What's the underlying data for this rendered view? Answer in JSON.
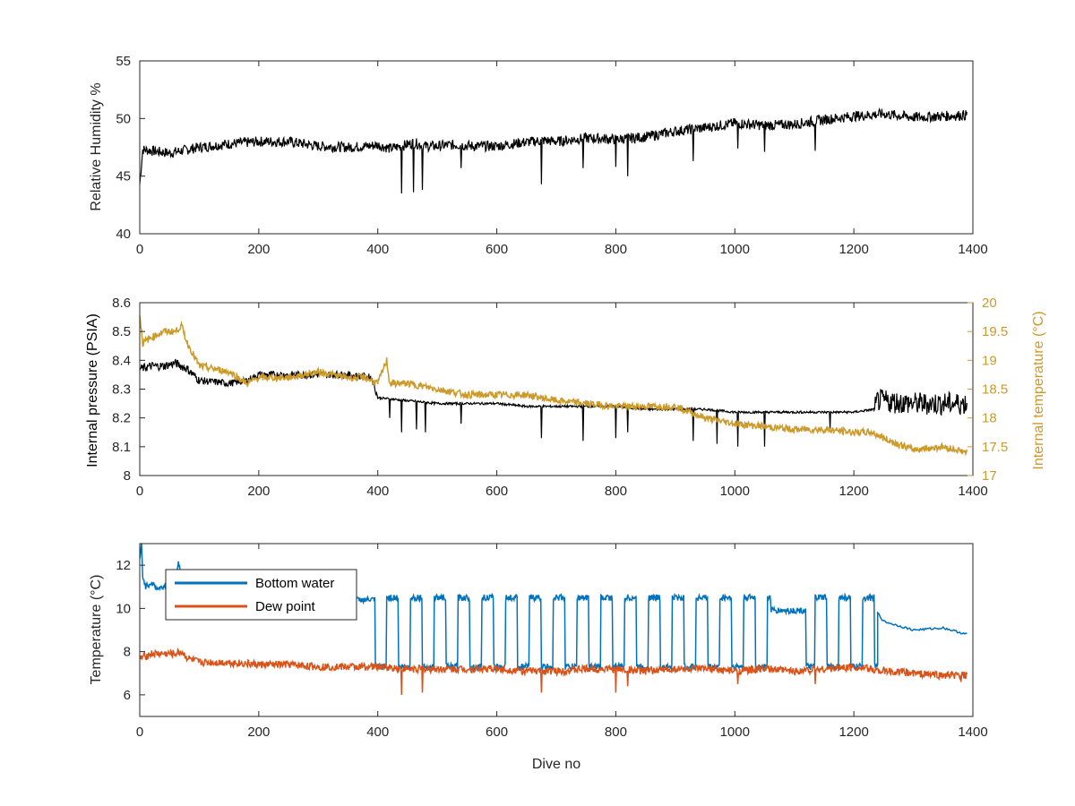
{
  "chart_data": [
    {
      "type": "line",
      "panel": "humidity",
      "xlabel": "",
      "ylabel": "Relative Humidity %",
      "xlim": [
        0,
        1400
      ],
      "ylim": [
        40,
        55
      ],
      "xticks": [
        0,
        200,
        400,
        600,
        800,
        1000,
        1200,
        1400
      ],
      "yticks": [
        40,
        45,
        50,
        55
      ],
      "grid": false,
      "series": [
        {
          "color": "#000000",
          "x": [
            0,
            5,
            20,
            50,
            100,
            150,
            200,
            250,
            300,
            350,
            380,
            400,
            420,
            440,
            460,
            480,
            500,
            520,
            540,
            560,
            600,
            640,
            680,
            700,
            750,
            800,
            850,
            900,
            950,
            1000,
            1050,
            1100,
            1150,
            1200,
            1250,
            1300,
            1350,
            1390
          ],
          "values": [
            44.3,
            47.3,
            47.2,
            47.0,
            47.5,
            47.8,
            48.0,
            48.0,
            47.6,
            47.5,
            47.6,
            47.7,
            47.4,
            47.6,
            47.9,
            47.6,
            47.6,
            47.7,
            47.7,
            47.6,
            47.6,
            47.9,
            48.1,
            48.0,
            48.3,
            48.2,
            48.4,
            48.9,
            49.2,
            49.6,
            49.4,
            49.5,
            49.9,
            50.2,
            50.4,
            50.1,
            50.2,
            50.3
          ]
        }
      ],
      "dips": [
        [
          440,
          43.5
        ],
        [
          460,
          43.6
        ],
        [
          475,
          43.8
        ],
        [
          540,
          45.7
        ],
        [
          675,
          44.3
        ],
        [
          745,
          45.7
        ],
        [
          800,
          45.8
        ],
        [
          820,
          45.0
        ],
        [
          930,
          46.3
        ],
        [
          1005,
          47.4
        ],
        [
          1050,
          47.1
        ],
        [
          1135,
          47.2
        ]
      ]
    },
    {
      "type": "line",
      "panel": "pressure",
      "xlabel": "",
      "ylabel": "Internal pressure (PSIA)",
      "ylabel_right": "Internal temperature (°C)",
      "xlim": [
        0,
        1400
      ],
      "ylim": [
        8.0,
        8.6
      ],
      "ylim_right": [
        17,
        20
      ],
      "xticks": [
        0,
        200,
        400,
        600,
        800,
        1000,
        1200,
        1400
      ],
      "yticks": [
        "8",
        "8.1",
        "8.2",
        "8.3",
        "8.4",
        "8.5",
        "8.6"
      ],
      "yticks_right": [
        "17",
        "17.5",
        "18",
        "18.5",
        "19",
        "19.5",
        "20"
      ],
      "grid": false,
      "series": [
        {
          "axis": "left",
          "color": "#000000",
          "x": [
            0,
            20,
            40,
            60,
            80,
            100,
            150,
            180,
            200,
            250,
            300,
            350,
            390,
            400,
            450,
            500,
            550,
            600,
            650,
            700,
            750,
            800,
            850,
            900,
            950,
            1000,
            1050,
            1100,
            1150,
            1200,
            1235,
            1240,
            1300,
            1390
          ],
          "values": [
            8.37,
            8.38,
            8.38,
            8.39,
            8.37,
            8.33,
            8.32,
            8.33,
            8.35,
            8.35,
            8.35,
            8.35,
            8.34,
            8.27,
            8.26,
            8.25,
            8.25,
            8.25,
            8.24,
            8.24,
            8.24,
            8.24,
            8.23,
            8.23,
            8.23,
            8.22,
            8.22,
            8.22,
            8.22,
            8.22,
            8.23,
            8.26,
            8.25,
            8.25
          ]
        },
        {
          "axis": "right",
          "color": "#cc9a2a",
          "x": [
            0,
            5,
            20,
            40,
            60,
            70,
            80,
            100,
            150,
            180,
            200,
            250,
            300,
            350,
            380,
            400,
            415,
            420,
            450,
            500,
            550,
            600,
            650,
            700,
            750,
            800,
            850,
            900,
            950,
            1000,
            1050,
            1100,
            1150,
            1200,
            1230,
            1260,
            1300,
            1350,
            1390
          ],
          "values": [
            19.8,
            19.3,
            19.4,
            19.5,
            19.5,
            19.6,
            19.3,
            18.9,
            18.8,
            18.6,
            18.7,
            18.7,
            18.8,
            18.7,
            18.7,
            18.6,
            19.0,
            18.6,
            18.6,
            18.5,
            18.4,
            18.4,
            18.4,
            18.3,
            18.25,
            18.2,
            18.2,
            18.2,
            18.0,
            17.9,
            17.85,
            17.8,
            17.8,
            17.75,
            17.75,
            17.6,
            17.45,
            17.5,
            17.4
          ]
        }
      ],
      "dips": [
        [
          420,
          8.2
        ],
        [
          440,
          8.15
        ],
        [
          465,
          8.16
        ],
        [
          480,
          8.15
        ],
        [
          540,
          8.18
        ],
        [
          675,
          8.13
        ],
        [
          745,
          8.12
        ],
        [
          800,
          8.13
        ],
        [
          820,
          8.15
        ],
        [
          930,
          8.12
        ],
        [
          970,
          8.11
        ],
        [
          1005,
          8.1
        ],
        [
          1050,
          8.1
        ],
        [
          1160,
          8.16
        ]
      ]
    },
    {
      "type": "line",
      "panel": "temperature",
      "xlabel": "Dive no",
      "ylabel": "Temperature (°C)",
      "xlim": [
        0,
        1400
      ],
      "ylim": [
        5,
        13
      ],
      "xticks": [
        0,
        200,
        400,
        600,
        800,
        1000,
        1200,
        1400
      ],
      "yticks": [
        6,
        8,
        10,
        12
      ],
      "grid": false,
      "legend_position": "top-left",
      "series": [
        {
          "name": "Bottom water",
          "color": "#0072bd",
          "x": [
            0,
            3,
            5,
            10,
            20,
            30,
            40,
            50,
            60,
            65,
            70,
            80,
            100,
            150,
            200,
            250,
            300,
            350,
            380,
            395
          ],
          "values": [
            12.2,
            13.0,
            11.5,
            11.0,
            11.2,
            10.9,
            11.0,
            11.4,
            11.0,
            12.2,
            11.5,
            10.9,
            10.8,
            10.7,
            10.6,
            10.6,
            10.5,
            10.4,
            10.4,
            10.4
          ]
        },
        {
          "name": "Dew point",
          "color": "#d95319",
          "x": [
            0,
            20,
            40,
            60,
            70,
            80,
            100,
            150,
            200,
            250,
            300,
            350,
            400,
            450,
            500,
            550,
            600,
            650,
            700,
            750,
            800,
            850,
            900,
            950,
            1000,
            1050,
            1100,
            1150,
            1200,
            1250,
            1300,
            1350,
            1390
          ],
          "values": [
            7.7,
            7.9,
            7.9,
            7.9,
            8.0,
            7.7,
            7.5,
            7.5,
            7.4,
            7.4,
            7.3,
            7.3,
            7.3,
            7.2,
            7.2,
            7.2,
            7.2,
            7.1,
            7.1,
            7.2,
            7.2,
            7.1,
            7.2,
            7.2,
            7.1,
            7.2,
            7.1,
            7.2,
            7.3,
            7.1,
            7.0,
            6.9,
            6.9
          ]
        }
      ],
      "cycling_region": {
        "x_start": 395,
        "x_end": 1240,
        "high": 10.5,
        "low": 7.3
      },
      "tail": {
        "x": [
          1240,
          1250,
          1300,
          1350,
          1390
        ],
        "values": [
          9.8,
          9.4,
          9.0,
          9.1,
          8.8
        ]
      },
      "dips": [
        [
          440,
          6.0
        ],
        [
          475,
          6.1
        ],
        [
          675,
          6.1
        ],
        [
          800,
          6.1
        ],
        [
          820,
          6.4
        ],
        [
          1005,
          6.5
        ],
        [
          1135,
          6.5
        ],
        [
          1380,
          6.6
        ]
      ]
    }
  ]
}
